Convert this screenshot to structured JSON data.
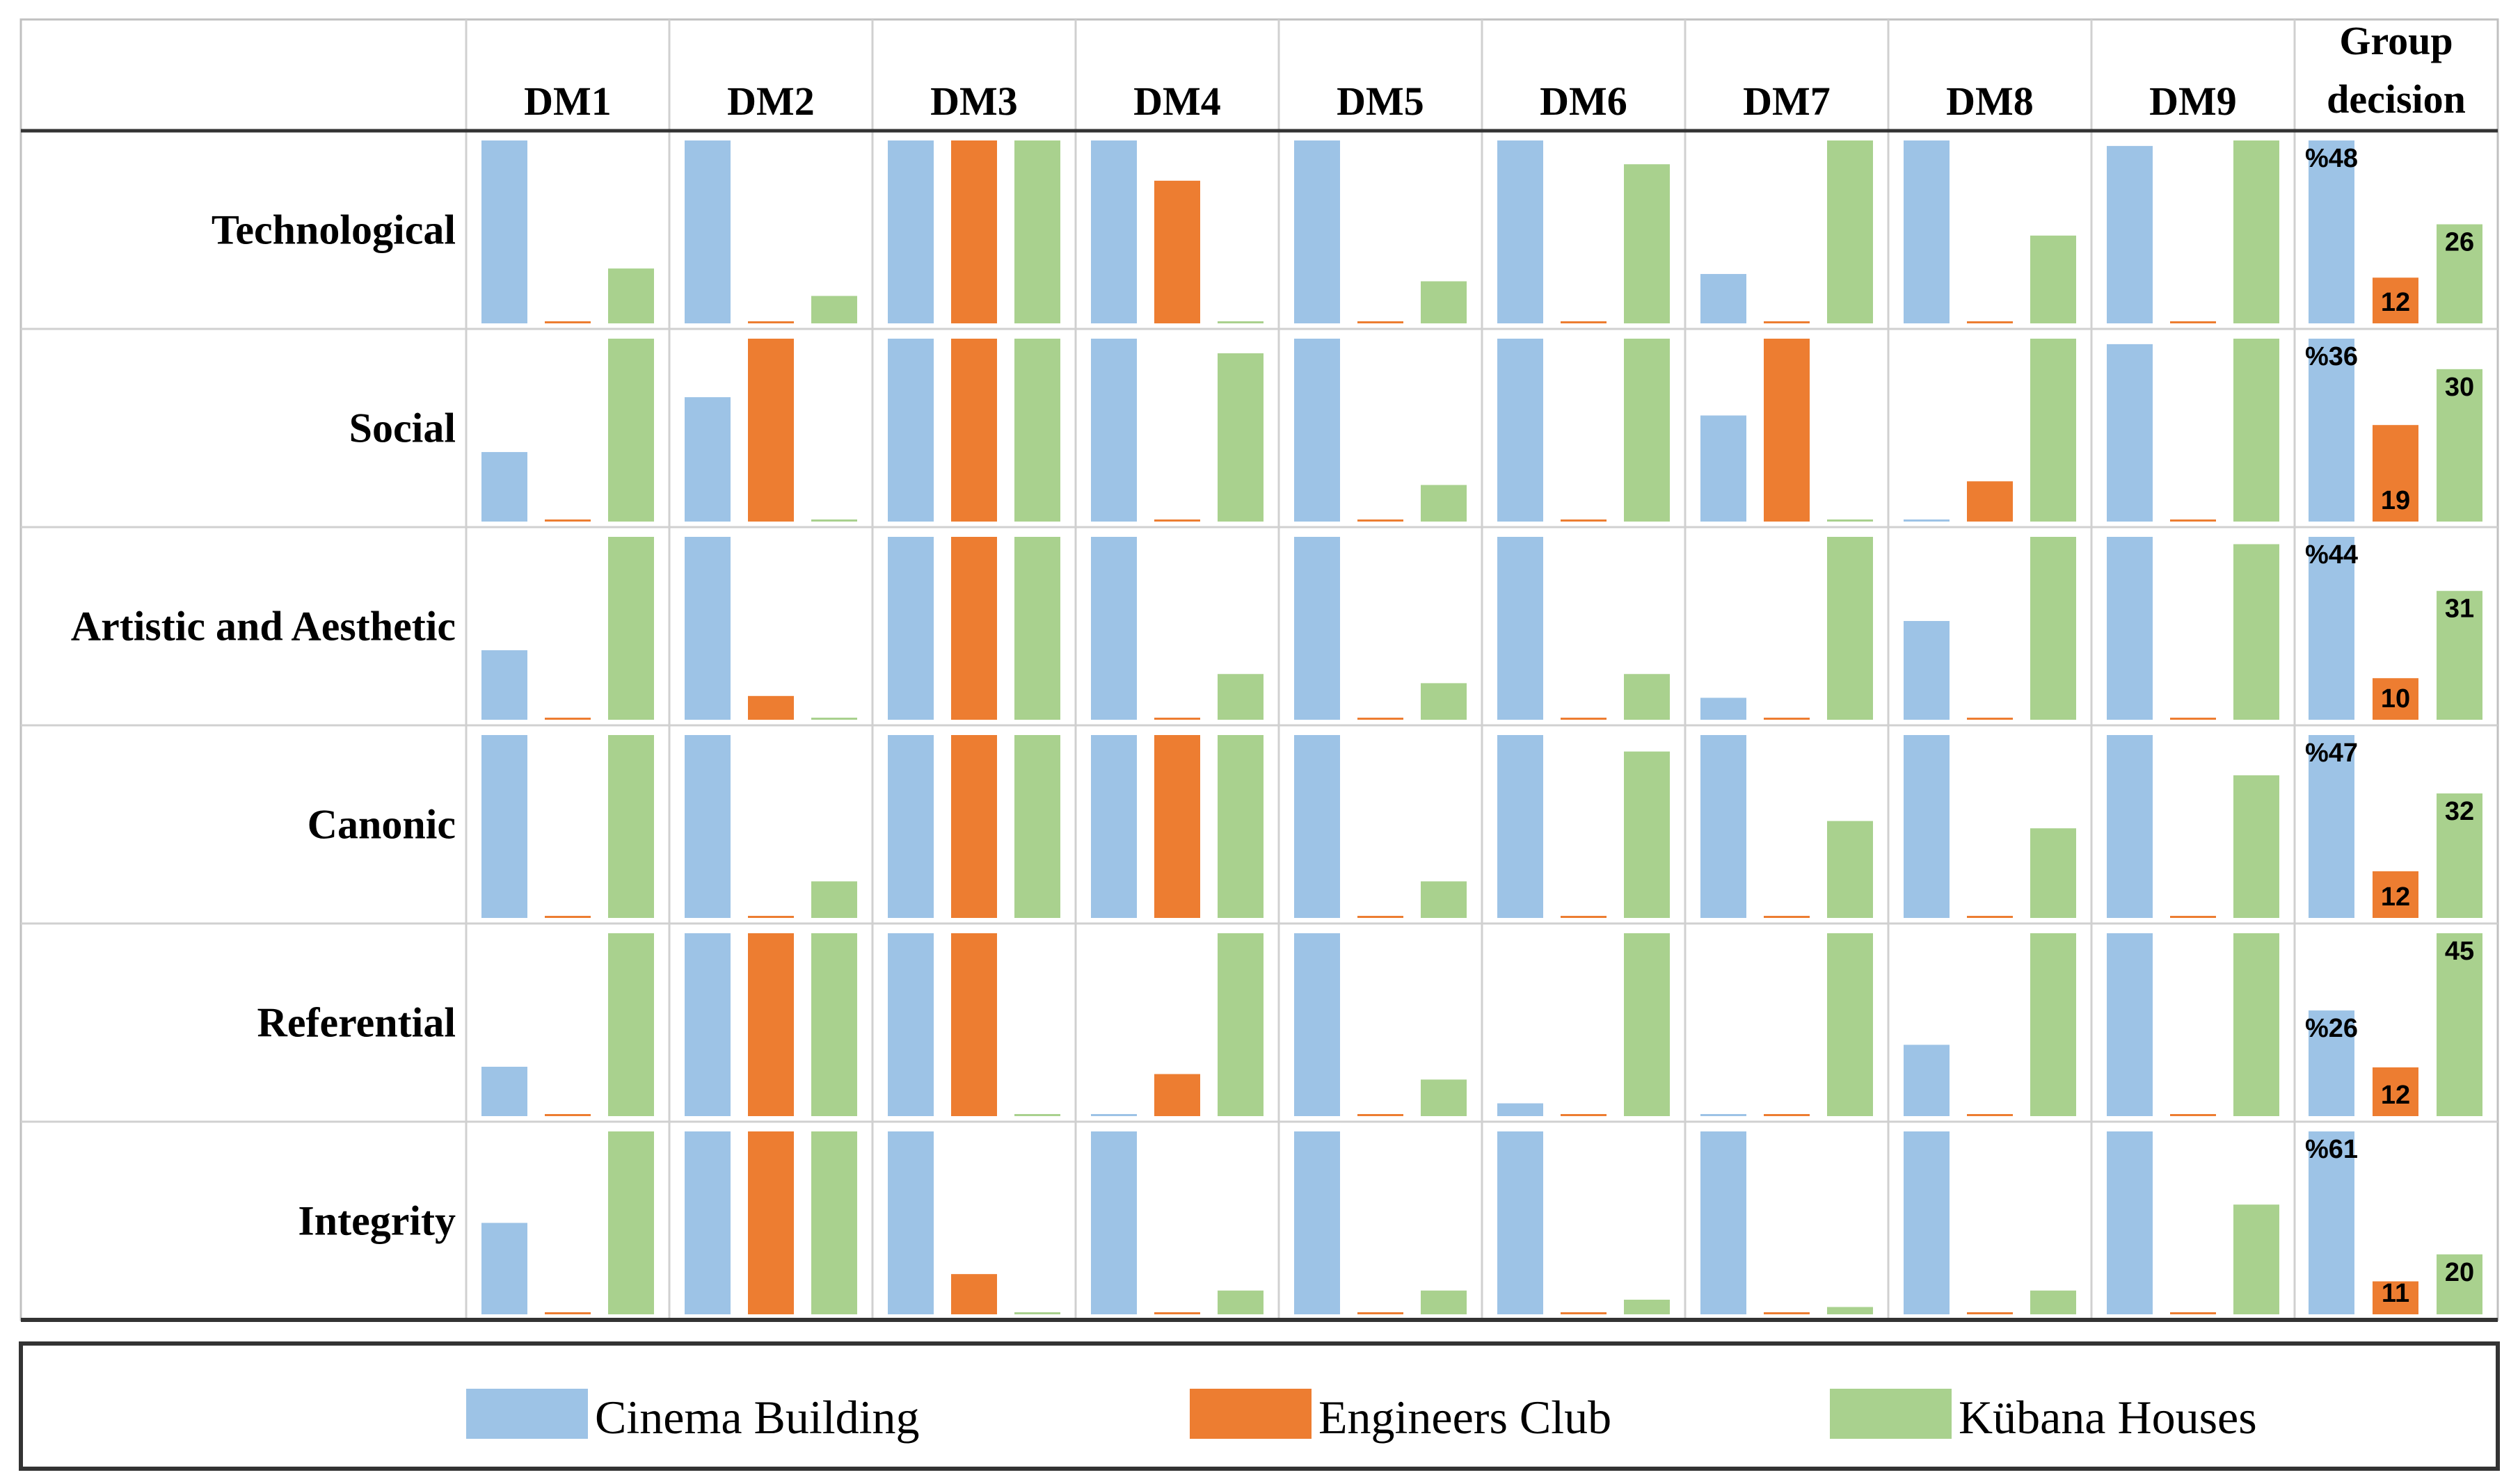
{
  "chart_data": {
    "type": "bar",
    "title": "",
    "columns": [
      "DM1",
      "DM2",
      "DM3",
      "DM4",
      "DM5",
      "DM6",
      "DM7",
      "DM8",
      "DM9"
    ],
    "group_header": [
      "Group",
      "decision"
    ],
    "rows": [
      "Technological",
      "Social",
      "Artistic and Aesthetic",
      "Canonic",
      "Referential",
      "Integrity"
    ],
    "series": [
      {
        "name": "Cinema Building",
        "color": "#9dc3e6"
      },
      {
        "name": "Engineers Club",
        "color": "#ed7d31"
      },
      {
        "name": "Kübana Houses",
        "color": "#a9d18e"
      }
    ],
    "ylim": [
      0,
      1
    ],
    "values": [
      [
        [
          1,
          0,
          0.3
        ],
        [
          1,
          0,
          0.15
        ],
        [
          1,
          1,
          1
        ],
        [
          1,
          0.78,
          0
        ],
        [
          1,
          0,
          0.23
        ],
        [
          1,
          0,
          0.87
        ],
        [
          0.27,
          0,
          1
        ],
        [
          1,
          0,
          0.48
        ],
        [
          0.97,
          0,
          1
        ]
      ],
      [
        [
          0.38,
          0,
          1
        ],
        [
          0.68,
          1,
          0
        ],
        [
          1,
          1,
          1
        ],
        [
          1,
          0,
          0.92
        ],
        [
          1,
          0,
          0.2
        ],
        [
          1,
          0,
          1
        ],
        [
          0.58,
          1,
          0
        ],
        [
          0,
          0.22,
          1
        ],
        [
          0.97,
          0,
          1
        ]
      ],
      [
        [
          0.38,
          0,
          1
        ],
        [
          1,
          0.13,
          0
        ],
        [
          1,
          1,
          1
        ],
        [
          1,
          0,
          0.25
        ],
        [
          1,
          0,
          0.2
        ],
        [
          1,
          0,
          0.25
        ],
        [
          0.12,
          0,
          1
        ],
        [
          0.54,
          0,
          1
        ],
        [
          1,
          0,
          0.96
        ]
      ],
      [
        [
          1,
          0,
          1
        ],
        [
          1,
          0,
          0.2
        ],
        [
          1,
          1,
          1
        ],
        [
          1,
          1,
          1
        ],
        [
          1,
          0,
          0.2
        ],
        [
          1,
          0,
          0.91
        ],
        [
          1,
          0,
          0.53
        ],
        [
          1,
          0,
          0.49
        ],
        [
          1,
          0,
          0.78
        ]
      ],
      [
        [
          0.27,
          0,
          1
        ],
        [
          1,
          1,
          1
        ],
        [
          1,
          1,
          0
        ],
        [
          0,
          0.23,
          1
        ],
        [
          1,
          0,
          0.2
        ],
        [
          0.07,
          0,
          1
        ],
        [
          0,
          0,
          1
        ],
        [
          0.39,
          0,
          1
        ],
        [
          1,
          0,
          1
        ]
      ],
      [
        [
          0.5,
          0,
          1
        ],
        [
          1,
          1,
          1
        ],
        [
          1,
          0.22,
          0
        ],
        [
          1,
          0,
          0.13
        ],
        [
          1,
          0,
          0.13
        ],
        [
          1,
          0,
          0.08
        ],
        [
          1,
          0,
          0.04
        ],
        [
          1,
          0,
          0.13
        ],
        [
          1,
          0,
          0.6
        ]
      ]
    ],
    "group_decision": [
      {
        "values": [
          48,
          12,
          26
        ],
        "labels": [
          "%48",
          "12",
          "26"
        ]
      },
      {
        "values": [
          36,
          19,
          30
        ],
        "labels": [
          "%36",
          "19",
          "30"
        ]
      },
      {
        "values": [
          44,
          10,
          31
        ],
        "labels": [
          "%44",
          "10",
          "31"
        ]
      },
      {
        "values": [
          47,
          12,
          32
        ],
        "labels": [
          "%47",
          "12",
          "32"
        ]
      },
      {
        "values": [
          26,
          12,
          45
        ],
        "labels": [
          "%26",
          "12",
          "45"
        ]
      },
      {
        "values": [
          61,
          11,
          20
        ],
        "labels": [
          "%61",
          "11",
          "20"
        ]
      }
    ],
    "legend_position": "bottom"
  }
}
